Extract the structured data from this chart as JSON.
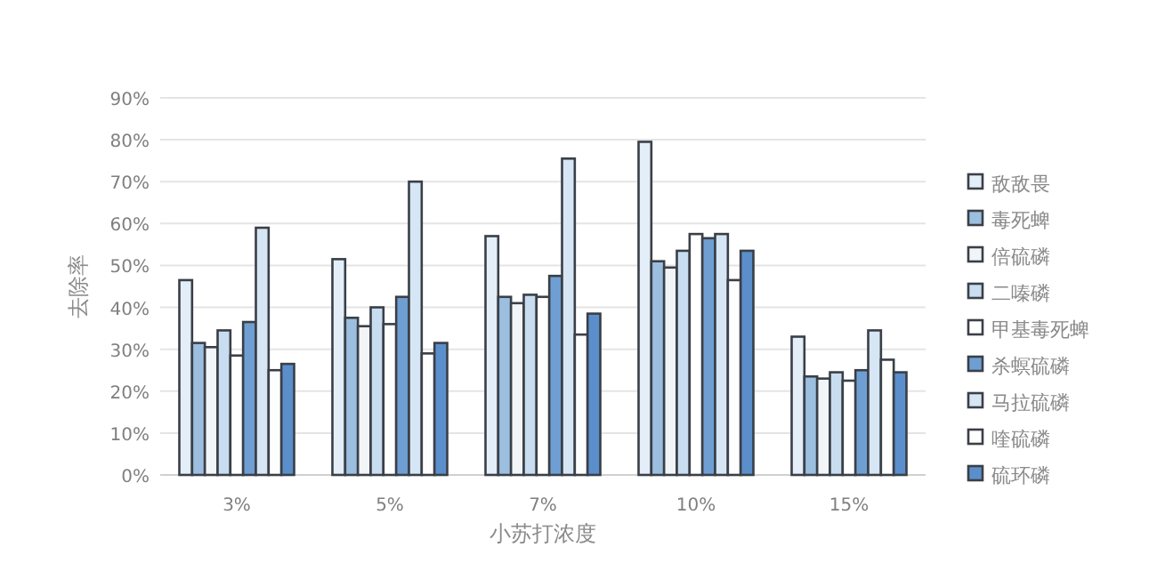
{
  "chart_data": {
    "type": "bar",
    "ylabel": "去除率",
    "xlabel": "小苏打浓度",
    "categories": [
      "3%",
      "5%",
      "7%",
      "10%",
      "15%"
    ],
    "series": [
      {
        "name": "敌敌畏",
        "color": "#e3eef8",
        "values": [
          46.5,
          51.5,
          57,
          79.5,
          33
        ]
      },
      {
        "name": "毒死蜱",
        "color": "#9cbfe0",
        "values": [
          31.5,
          37.5,
          42.5,
          51,
          23.5
        ]
      },
      {
        "name": "倍硫磷",
        "color": "#f2f5f8",
        "values": [
          30.5,
          35.5,
          41,
          49.5,
          23
        ]
      },
      {
        "name": "二嗪磷",
        "color": "#c9ddf0",
        "values": [
          34.5,
          40,
          43,
          53.5,
          24.5
        ]
      },
      {
        "name": "甲基毒死蜱",
        "color": "#ffffff",
        "values": [
          28.5,
          36,
          42.5,
          57.5,
          22.5
        ]
      },
      {
        "name": "杀螟硫磷",
        "color": "#6f9fd2",
        "values": [
          36.5,
          42.5,
          47.5,
          56.5,
          25
        ]
      },
      {
        "name": "马拉硫磷",
        "color": "#d6e6f4",
        "values": [
          59,
          70,
          75.5,
          57.5,
          34.5
        ]
      },
      {
        "name": "喹硫磷",
        "color": "#fdfdfd",
        "values": [
          25,
          29,
          33.5,
          46.5,
          27.5
        ]
      },
      {
        "name": "硫环磷",
        "color": "#5b8fcb",
        "values": [
          26.5,
          31.5,
          38.5,
          53.5,
          24.5
        ]
      }
    ],
    "ylim": [
      0,
      90
    ],
    "yticks": [
      {
        "value": 0,
        "label": "0%"
      },
      {
        "value": 10,
        "label": "10%"
      },
      {
        "value": 20,
        "label": "20%"
      },
      {
        "value": 30,
        "label": "30%"
      },
      {
        "value": 40,
        "label": "40%"
      },
      {
        "value": 50,
        "label": "50%"
      },
      {
        "value": 60,
        "label": "60%"
      },
      {
        "value": 70,
        "label": "70%"
      },
      {
        "value": 80,
        "label": "80%"
      },
      {
        "value": 90,
        "label": "90%"
      }
    ],
    "grid": "y",
    "legend": "right"
  }
}
